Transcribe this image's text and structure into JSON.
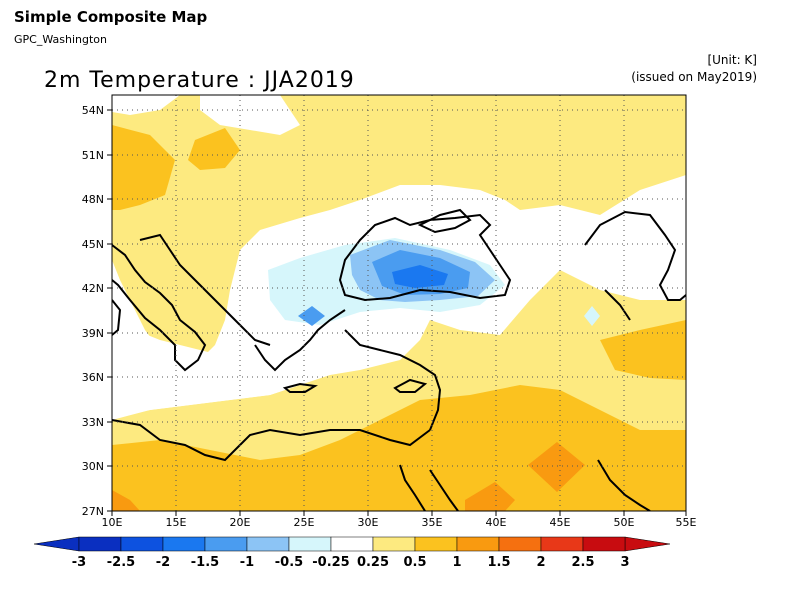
{
  "header": {
    "title": "Simple Composite Map",
    "source": "GPC_Washington",
    "unit": "[Unit: K]",
    "issued": "(issued on May2019)",
    "map_title": "2m Temperature : JJA2019"
  },
  "axes": {
    "lon_labels": [
      "10E",
      "15E",
      "20E",
      "25E",
      "30E",
      "35E",
      "40E",
      "45E",
      "50E",
      "55E"
    ],
    "lat_labels": [
      "54N",
      "51N",
      "48N",
      "45N",
      "42N",
      "39N",
      "36N",
      "33N",
      "30N",
      "27N"
    ]
  },
  "colorbar": {
    "labels": [
      "-3",
      "-2.5",
      "-2",
      "-1.5",
      "-1",
      "-0.5",
      "-0.25",
      "0.25",
      "0.5",
      "1",
      "1.5",
      "2",
      "2.5",
      "3"
    ],
    "colors": [
      "#0a2fc0",
      "#0d52e0",
      "#1a78f0",
      "#4a9cf0",
      "#8cc4f5",
      "#d6f6fb",
      "#ffffff",
      "#fdea80",
      "#fbc21f",
      "#f99a10",
      "#f57010",
      "#e83818",
      "#c80c10"
    ]
  },
  "palette": {
    "warm_light": "#fdea80",
    "warm": "#fbc21f",
    "warm_dark": "#f99a10",
    "cool_light": "#d6f6fb",
    "cool": "#8cc4f5",
    "cool_mid": "#4a9cf0",
    "cool_dark": "#1a78f0"
  }
}
